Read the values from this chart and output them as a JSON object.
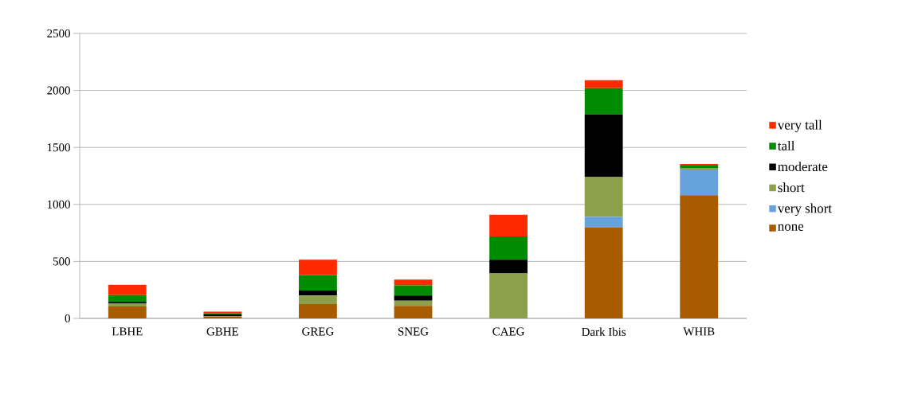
{
  "chart_data": {
    "type": "bar",
    "stacked": true,
    "categories": [
      "LBHE",
      "GBHE",
      "GREG",
      "SNEG",
      "CAEG",
      "Dark Ibis",
      "WHIB"
    ],
    "series": [
      {
        "name": "none",
        "color": "#a95b00",
        "values": [
          105,
          15,
          125,
          110,
          0,
          800,
          1080
        ]
      },
      {
        "name": "very short",
        "color": "#66a3dd",
        "values": [
          0,
          0,
          0,
          0,
          0,
          90,
          225
        ]
      },
      {
        "name": "short",
        "color": "#8c9f4b",
        "values": [
          25,
          5,
          75,
          45,
          395,
          350,
          15
        ]
      },
      {
        "name": "moderate",
        "color": "#000000",
        "values": [
          15,
          15,
          45,
          45,
          120,
          550,
          0
        ]
      },
      {
        "name": "tall",
        "color": "#008c00",
        "values": [
          60,
          10,
          135,
          90,
          205,
          230,
          20
        ]
      },
      {
        "name": "very tall",
        "color": "#ff2a00",
        "values": [
          90,
          15,
          135,
          50,
          190,
          70,
          15
        ]
      }
    ],
    "ylim": [
      0,
      2500
    ],
    "yticks": [
      0,
      500,
      1000,
      1500,
      2000,
      2500
    ],
    "grid": "y",
    "legend": "right"
  }
}
